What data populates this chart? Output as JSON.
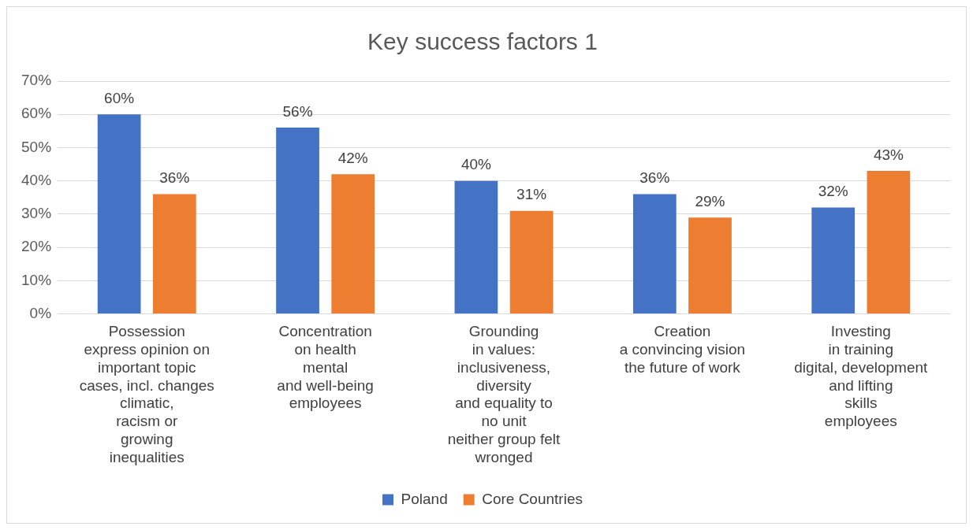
{
  "chart_data": {
    "type": "bar",
    "title": "Key success factors 1",
    "categories": [
      "Possession\nexpress opinion on\nimportant topic\ncases, incl. changes\nclimatic,\nracism or\ngrowing\ninequalities",
      "Concentration\non health\nmental\nand well-being\nemployees",
      "Grounding\nin values:\ninclusiveness,\ndiversity\nand equality to\nno unit\nneither group felt\nwronged",
      "Creation\na convincing vision\nthe future of work",
      "Investing\nin training\ndigital, development\nand lifting\nskills\nemployees"
    ],
    "series": [
      {
        "name": "Poland",
        "color": "#4472c4",
        "values": [
          60,
          56,
          40,
          36,
          32
        ],
        "value_labels": [
          "60%",
          "56%",
          "40%",
          "36%",
          "32%"
        ]
      },
      {
        "name": "Core Countries",
        "color": "#ed7d31",
        "values": [
          36,
          42,
          31,
          29,
          43
        ],
        "value_labels": [
          "36%",
          "42%",
          "31%",
          "29%",
          "43%"
        ]
      }
    ],
    "ylim": [
      0,
      70
    ],
    "yticks": [
      {
        "value": 0,
        "label": "0%"
      },
      {
        "value": 10,
        "label": "10%"
      },
      {
        "value": 20,
        "label": "20%"
      },
      {
        "value": 30,
        "label": "30%"
      },
      {
        "value": 40,
        "label": "40%"
      },
      {
        "value": 50,
        "label": "50%"
      },
      {
        "value": 60,
        "label": "60%"
      },
      {
        "value": 70,
        "label": "70%"
      }
    ],
    "grid": "y",
    "legend": "bottom"
  }
}
